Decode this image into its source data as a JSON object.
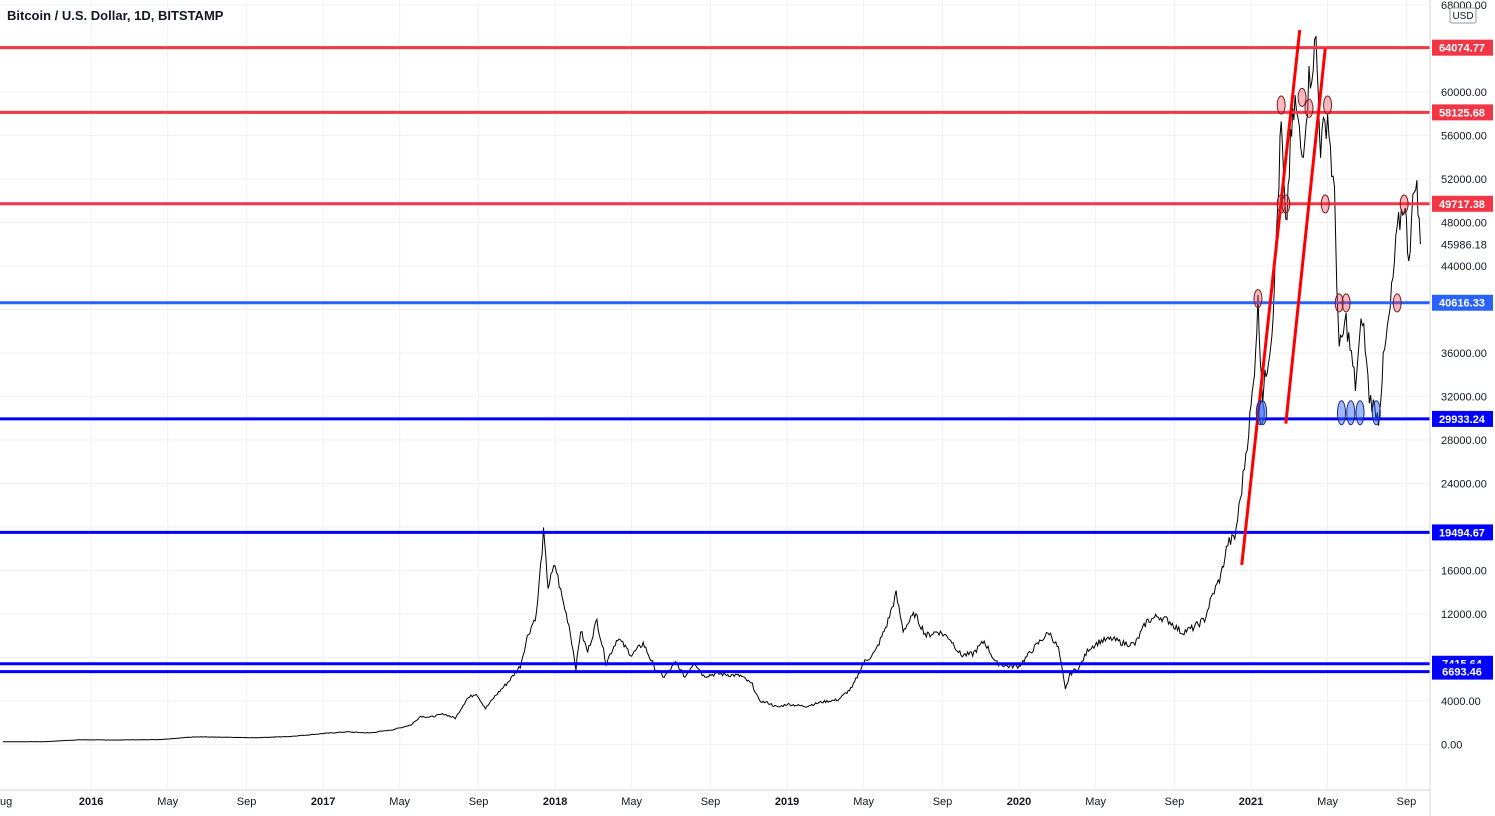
{
  "header": {
    "title": "Bitcoin / U.S. Dollar, 1D, BITSTAMP"
  },
  "currency_label": "USD",
  "chart_data": {
    "type": "line",
    "title": "Bitcoin / U.S. Dollar, 1D, BITSTAMP",
    "ylim": [
      -3000,
      68000
    ],
    "y_ticks": [
      "68000.00",
      "60000.00",
      "56000.00",
      "52000.00",
      "48000.00",
      "44000.00",
      "36000.00",
      "32000.00",
      "28000.00",
      "24000.00",
      "16000.00",
      "12000.00",
      "4000.00",
      "0.00"
    ],
    "x_ticks": [
      {
        "label": "ug",
        "t": 2015.62
      },
      {
        "label": "2016",
        "t": 2016.0
      },
      {
        "label": "May",
        "t": 2016.33
      },
      {
        "label": "Sep",
        "t": 2016.67
      },
      {
        "label": "2017",
        "t": 2017.0
      },
      {
        "label": "May",
        "t": 2017.33
      },
      {
        "label": "Sep",
        "t": 2017.67
      },
      {
        "label": "2018",
        "t": 2018.0
      },
      {
        "label": "May",
        "t": 2018.33
      },
      {
        "label": "Sep",
        "t": 2018.67
      },
      {
        "label": "2019",
        "t": 2019.0
      },
      {
        "label": "May",
        "t": 2019.33
      },
      {
        "label": "Sep",
        "t": 2019.67
      },
      {
        "label": "2020",
        "t": 2020.0
      },
      {
        "label": "May",
        "t": 2020.33
      },
      {
        "label": "Sep",
        "t": 2020.67
      },
      {
        "label": "2021",
        "t": 2021.0
      },
      {
        "label": "May",
        "t": 2021.33
      },
      {
        "label": "Sep",
        "t": 2021.67
      }
    ],
    "current_price": "45986.18",
    "current_price_value": 45986.18,
    "levels": [
      {
        "value": 64074.77,
        "label": "64074.77",
        "color": "#f23645"
      },
      {
        "value": 58125.68,
        "label": "58125.68",
        "color": "#f23645"
      },
      {
        "value": 49717.38,
        "label": "49717.38",
        "color": "#f23645"
      },
      {
        "value": 40616.33,
        "label": "40616.33",
        "color": "#2962ff"
      },
      {
        "value": 29933.24,
        "label": "29933.24",
        "color": "#0000ff"
      },
      {
        "value": 19494.67,
        "label": "19494.67",
        "color": "#0000ff"
      },
      {
        "value": 7415.64,
        "label": "7415.64",
        "color": "#0000ff"
      },
      {
        "value": 6693.46,
        "label": "6693.46",
        "color": "#0000ff"
      }
    ],
    "trend_lines": [
      {
        "t1": 2020.96,
        "v1": 16500,
        "t2": 2021.21,
        "v2": 65700,
        "color": "#ff0000"
      },
      {
        "t1": 2021.15,
        "v1": 29500,
        "t2": 2021.32,
        "v2": 64000,
        "color": "#ff0000"
      }
    ],
    "series": [
      {
        "points": [
          [
            2015.62,
            240
          ],
          [
            2015.8,
            250
          ],
          [
            2015.95,
            420
          ],
          [
            2016.1,
            400
          ],
          [
            2016.3,
            450
          ],
          [
            2016.45,
            700
          ],
          [
            2016.55,
            660
          ],
          [
            2016.7,
            610
          ],
          [
            2016.85,
            720
          ],
          [
            2016.95,
            900
          ],
          [
            2017.0,
            1000
          ],
          [
            2017.1,
            1150
          ],
          [
            2017.2,
            1050
          ],
          [
            2017.3,
            1350
          ],
          [
            2017.38,
            1800
          ],
          [
            2017.42,
            2600
          ],
          [
            2017.46,
            2500
          ],
          [
            2017.52,
            2800
          ],
          [
            2017.57,
            2400
          ],
          [
            2017.62,
            4200
          ],
          [
            2017.66,
            4700
          ],
          [
            2017.7,
            3300
          ],
          [
            2017.74,
            4400
          ],
          [
            2017.8,
            5800
          ],
          [
            2017.85,
            7200
          ],
          [
            2017.88,
            9900
          ],
          [
            2017.92,
            12000
          ],
          [
            2017.95,
            19400
          ],
          [
            2017.97,
            14500
          ],
          [
            2018.0,
            16500
          ],
          [
            2018.03,
            13500
          ],
          [
            2018.06,
            11000
          ],
          [
            2018.09,
            7000
          ],
          [
            2018.11,
            10500
          ],
          [
            2018.14,
            8500
          ],
          [
            2018.18,
            11400
          ],
          [
            2018.22,
            7500
          ],
          [
            2018.27,
            9800
          ],
          [
            2018.33,
            8200
          ],
          [
            2018.38,
            9300
          ],
          [
            2018.43,
            7000
          ],
          [
            2018.47,
            6200
          ],
          [
            2018.52,
            7500
          ],
          [
            2018.56,
            6200
          ],
          [
            2018.6,
            7600
          ],
          [
            2018.64,
            6300
          ],
          [
            2018.7,
            6500
          ],
          [
            2018.75,
            6400
          ],
          [
            2018.8,
            6300
          ],
          [
            2018.85,
            5500
          ],
          [
            2018.88,
            4000
          ],
          [
            2018.92,
            3800
          ],
          [
            2018.96,
            3400
          ],
          [
            2019.0,
            3700
          ],
          [
            2019.08,
            3500
          ],
          [
            2019.15,
            3900
          ],
          [
            2019.22,
            4100
          ],
          [
            2019.28,
            5200
          ],
          [
            2019.33,
            7500
          ],
          [
            2019.38,
            8500
          ],
          [
            2019.43,
            11000
          ],
          [
            2019.47,
            13800
          ],
          [
            2019.5,
            10500
          ],
          [
            2019.55,
            12000
          ],
          [
            2019.6,
            10000
          ],
          [
            2019.65,
            10400
          ],
          [
            2019.7,
            9800
          ],
          [
            2019.75,
            8200
          ],
          [
            2019.8,
            8300
          ],
          [
            2019.85,
            9500
          ],
          [
            2019.9,
            7500
          ],
          [
            2019.95,
            7200
          ],
          [
            2020.0,
            7200
          ],
          [
            2020.05,
            8500
          ],
          [
            2020.1,
            9700
          ],
          [
            2020.13,
            10300
          ],
          [
            2020.17,
            8800
          ],
          [
            2020.2,
            5000
          ],
          [
            2020.22,
            6500
          ],
          [
            2020.26,
            7100
          ],
          [
            2020.3,
            8800
          ],
          [
            2020.35,
            9500
          ],
          [
            2020.4,
            9700
          ],
          [
            2020.45,
            9300
          ],
          [
            2020.5,
            9200
          ],
          [
            2020.55,
            11300
          ],
          [
            2020.6,
            11800
          ],
          [
            2020.65,
            11300
          ],
          [
            2020.7,
            10300
          ],
          [
            2020.75,
            10700
          ],
          [
            2020.8,
            11500
          ],
          [
            2020.83,
            13500
          ],
          [
            2020.87,
            15500
          ],
          [
            2020.9,
            18500
          ],
          [
            2020.93,
            19000
          ],
          [
            2020.96,
            23500
          ],
          [
            2020.99,
            29000
          ],
          [
            2021.01,
            33000
          ],
          [
            2021.03,
            40500
          ],
          [
            2021.05,
            32000
          ],
          [
            2021.07,
            35000
          ],
          [
            2021.09,
            38000
          ],
          [
            2021.11,
            47000
          ],
          [
            2021.13,
            57000
          ],
          [
            2021.15,
            47000
          ],
          [
            2021.17,
            55000
          ],
          [
            2021.19,
            59000
          ],
          [
            2021.22,
            54000
          ],
          [
            2021.25,
            61000
          ],
          [
            2021.28,
            64500
          ],
          [
            2021.3,
            55000
          ],
          [
            2021.33,
            58000
          ],
          [
            2021.36,
            50000
          ],
          [
            2021.38,
            36000
          ],
          [
            2021.41,
            39000
          ],
          [
            2021.45,
            33000
          ],
          [
            2021.48,
            39500
          ],
          [
            2021.51,
            32000
          ],
          [
            2021.55,
            30000
          ],
          [
            2021.57,
            35000
          ],
          [
            2021.6,
            40000
          ],
          [
            2021.63,
            47000
          ],
          [
            2021.66,
            50000
          ],
          [
            2021.68,
            45000
          ],
          [
            2021.71,
            52500
          ],
          [
            2021.73,
            46000
          ]
        ]
      }
    ]
  }
}
